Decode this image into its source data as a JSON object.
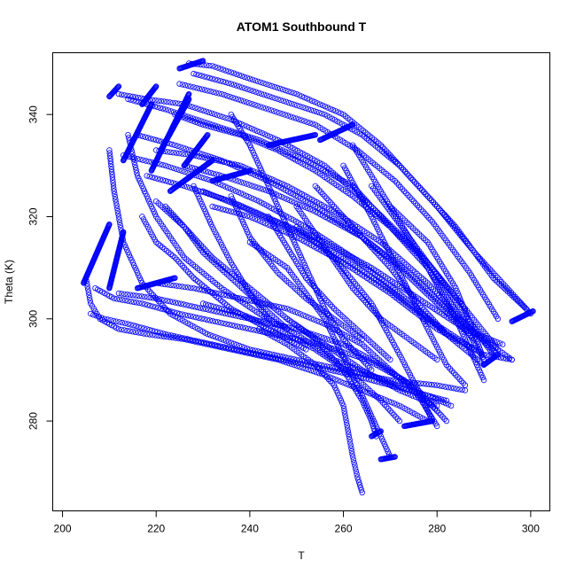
{
  "chart_data": {
    "type": "scatter",
    "title": "ATOM1 Southbound T",
    "xlabel": "T",
    "ylabel": "Theta (K)",
    "xlim": [
      198,
      304
    ],
    "ylim": [
      262.5,
      352
    ],
    "xticks": [
      "200",
      "220",
      "240",
      "260",
      "280",
      "300"
    ],
    "yticks": [
      "280",
      "300",
      "320",
      "340"
    ],
    "xtick_values": [
      200,
      220,
      240,
      260,
      280,
      300
    ],
    "ytick_values": [
      280,
      300,
      320,
      340
    ],
    "marker": "open-circle",
    "color": "#0000ff",
    "grid": false,
    "legend": "none",
    "profiles": [
      {
        "x": [
          227,
          232,
          240,
          250,
          260,
          268,
          276,
          284,
          292,
          299
        ],
        "y": [
          350,
          349.5,
          347,
          344,
          340,
          334,
          326,
          318,
          308,
          302
        ]
      },
      {
        "x": [
          228,
          236,
          246,
          256,
          264,
          272,
          280,
          288,
          295,
          300
        ],
        "y": [
          348,
          346,
          343,
          340,
          336,
          330,
          322,
          313,
          306,
          301
        ]
      },
      {
        "x": [
          225,
          234,
          244,
          254,
          263,
          271,
          279,
          287,
          293
        ],
        "y": [
          346,
          344,
          341,
          338,
          333,
          327,
          319,
          309,
          300
        ]
      },
      {
        "x": [
          212,
          218,
          226,
          236,
          246,
          256,
          266,
          276,
          286,
          293
        ],
        "y": [
          344,
          343,
          342,
          339,
          335,
          330,
          322,
          313,
          302,
          294
        ]
      },
      {
        "x": [
          214,
          222,
          232,
          242,
          252,
          262,
          270,
          278,
          285,
          290
        ],
        "y": [
          343,
          341,
          338,
          335,
          331,
          326,
          318,
          310,
          300,
          292
        ]
      },
      {
        "x": [
          224,
          230,
          238,
          246,
          254,
          262,
          270,
          278,
          286
        ],
        "y": [
          340,
          338,
          336,
          333,
          329,
          324,
          318,
          311,
          302
        ]
      },
      {
        "x": [
          216,
          224,
          234,
          244,
          254,
          264,
          274,
          282,
          290,
          296
        ],
        "y": [
          336,
          334,
          331,
          327,
          322,
          316,
          309,
          302,
          296,
          292
        ]
      },
      {
        "x": [
          220,
          228,
          238,
          248,
          258,
          268,
          278,
          286,
          293
        ],
        "y": [
          333,
          332,
          330,
          326,
          321,
          315,
          307,
          299,
          293
        ]
      },
      {
        "x": [
          213,
          222,
          232,
          242,
          252,
          262,
          272,
          282,
          290
        ],
        "y": [
          332,
          330,
          327,
          323,
          318,
          312,
          305,
          297,
          291
        ]
      },
      {
        "x": [
          226,
          234,
          244,
          254,
          264,
          272,
          280,
          288
        ],
        "y": [
          330,
          328,
          325,
          321,
          316,
          310,
          303,
          296
        ]
      },
      {
        "x": [
          218,
          226,
          236,
          246,
          256,
          266,
          276,
          286,
          294
        ],
        "y": [
          328,
          326,
          323,
          319,
          315,
          310,
          304,
          298,
          295
        ]
      },
      {
        "x": [
          230,
          238,
          248,
          258,
          268,
          278,
          288
        ],
        "y": [
          325,
          322,
          318,
          313,
          307,
          300,
          294
        ]
      },
      {
        "x": [
          232,
          240,
          250,
          260,
          270,
          280,
          290,
          296
        ],
        "y": [
          322,
          320,
          316,
          311,
          305,
          298,
          293,
          292
        ]
      },
      {
        "x": [
          220,
          226,
          232,
          240,
          248,
          256,
          264,
          272,
          280
        ],
        "y": [
          323,
          318,
          312,
          306,
          300,
          295,
          290,
          286,
          283
        ]
      },
      {
        "x": [
          214,
          216,
          220,
          226,
          234,
          242,
          250,
          258,
          266,
          274,
          282
        ],
        "y": [
          336,
          328,
          320,
          312,
          306,
          301,
          297,
          292,
          289,
          286,
          284
        ]
      },
      {
        "x": [
          210,
          211,
          213,
          217,
          223,
          231,
          240,
          250,
          260,
          270,
          280,
          286
        ],
        "y": [
          333,
          325,
          315,
          307,
          301,
          297,
          294,
          292,
          290,
          288,
          287,
          286
        ]
      },
      {
        "x": [
          205,
          206,
          208,
          212,
          218,
          226,
          236,
          246,
          256,
          264,
          272,
          278
        ],
        "y": [
          308,
          303,
          300,
          298,
          297,
          296,
          294,
          292,
          289,
          286,
          283,
          280
        ]
      },
      {
        "x": [
          206,
          209,
          214,
          222,
          232,
          242,
          252,
          262,
          270,
          278,
          283
        ],
        "y": [
          301,
          300,
          299,
          297,
          295,
          293,
          291,
          289,
          287,
          285,
          283
        ]
      },
      {
        "x": [
          207,
          211,
          217,
          225,
          235,
          245,
          255,
          265,
          273,
          280
        ],
        "y": [
          306,
          304,
          303,
          301,
          299,
          297,
          295,
          292,
          288,
          282
        ]
      },
      {
        "x": [
          212,
          220,
          230,
          240,
          250,
          260,
          268,
          276,
          282
        ],
        "y": [
          305,
          304,
          302,
          300,
          298,
          295,
          291,
          286,
          280
        ]
      },
      {
        "x": [
          220,
          228,
          238,
          248,
          256,
          264,
          270,
          276,
          280
        ],
        "y": [
          307,
          306,
          304,
          302,
          299,
          295,
          290,
          285,
          279
        ]
      },
      {
        "x": [
          230,
          238,
          246,
          254,
          262,
          268,
          272
        ],
        "y": [
          303,
          301,
          298,
          294,
          289,
          284,
          280
        ]
      },
      {
        "x": [
          242,
          248,
          254,
          258,
          260,
          261,
          262,
          263,
          264
        ],
        "y": [
          298,
          295,
          291,
          287,
          283,
          278,
          273,
          269,
          266
        ]
      },
      {
        "x": [
          248,
          254,
          260,
          264,
          266,
          267
        ],
        "y": [
          300,
          296,
          290,
          284,
          280,
          277
        ]
      },
      {
        "x": [
          240,
          248,
          256,
          264,
          270
        ],
        "y": [
          315,
          310,
          300,
          285,
          273
        ]
      },
      {
        "x": [
          250,
          258,
          266,
          272,
          276,
          279
        ],
        "y": [
          318,
          312,
          303,
          293,
          286,
          280
        ]
      },
      {
        "x": [
          260,
          266,
          272,
          278,
          282,
          286
        ],
        "y": [
          330,
          320,
          309,
          298,
          291,
          287
        ]
      },
      {
        "x": [
          262,
          270,
          278,
          284,
          288,
          290
        ],
        "y": [
          334,
          322,
          310,
          300,
          292,
          288
        ]
      },
      {
        "x": [
          266,
          274,
          282,
          288,
          292
        ],
        "y": [
          326,
          316,
          306,
          298,
          293
        ]
      },
      {
        "x": [
          270,
          278,
          284,
          288,
          290
        ],
        "y": [
          322,
          315,
          306,
          297,
          292
        ]
      },
      {
        "x": [
          236,
          240,
          244,
          248,
          252,
          256,
          260,
          266
        ],
        "y": [
          340,
          334,
          326,
          318,
          310,
          302,
          296,
          290
        ]
      },
      {
        "x": [
          217,
          220,
          224,
          228,
          232,
          236,
          240,
          244,
          248,
          252
        ],
        "y": [
          320,
          315,
          312,
          308,
          305,
          302,
          300,
          298,
          296,
          294
        ]
      },
      {
        "x": [
          222,
          226,
          230,
          236,
          242,
          248
        ],
        "y": [
          322,
          318,
          313,
          308,
          303,
          298
        ]
      },
      {
        "x": [
          228,
          232,
          236,
          240,
          244
        ],
        "y": [
          326,
          318,
          311,
          305,
          300
        ]
      },
      {
        "x": [
          236,
          240,
          246,
          252,
          258,
          264
        ],
        "y": [
          324,
          316,
          309,
          304,
          300,
          296
        ]
      },
      {
        "x": [
          244,
          248,
          252,
          258,
          264,
          270
        ],
        "y": [
          320,
          314,
          308,
          302,
          297,
          292
        ]
      },
      {
        "x": [
          250,
          256,
          262,
          268,
          274,
          280
        ],
        "y": [
          322,
          314,
          306,
          300,
          296,
          292
        ]
      },
      {
        "x": [
          254,
          262,
          270,
          276,
          282
        ],
        "y": [
          326,
          318,
          310,
          303,
          297
        ]
      }
    ],
    "dense_segments": [
      {
        "x": [
          204.5,
          210
        ],
        "y": [
          307,
          318.5
        ]
      },
      {
        "x": [
          210,
          213
        ],
        "y": [
          306,
          317
        ]
      },
      {
        "x": [
          210,
          212
        ],
        "y": [
          343.5,
          345.5
        ]
      },
      {
        "x": [
          217,
          220
        ],
        "y": [
          342,
          345.5
        ]
      },
      {
        "x": [
          213,
          219
        ],
        "y": [
          331,
          342
        ]
      },
      {
        "x": [
          219,
          227
        ],
        "y": [
          329,
          344
        ]
      },
      {
        "x": [
          226,
          231
        ],
        "y": [
          330,
          336
        ]
      },
      {
        "x": [
          223,
          232
        ],
        "y": [
          325,
          331
        ]
      },
      {
        "x": [
          221,
          227
        ],
        "y": [
          333,
          343
        ]
      },
      {
        "x": [
          225,
          230
        ],
        "y": [
          349,
          350.5
        ]
      },
      {
        "x": [
          216,
          224
        ],
        "y": [
          306,
          308
        ]
      },
      {
        "x": [
          296,
          300.5
        ],
        "y": [
          299.5,
          301.5
        ]
      },
      {
        "x": [
          290,
          293
        ],
        "y": [
          291,
          293
        ]
      },
      {
        "x": [
          273,
          279
        ],
        "y": [
          279,
          280
        ]
      },
      {
        "x": [
          266,
          268
        ],
        "y": [
          277,
          278
        ]
      },
      {
        "x": [
          268,
          271
        ],
        "y": [
          272.5,
          273
        ]
      },
      {
        "x": [
          232,
          240
        ],
        "y": [
          327,
          329
        ]
      },
      {
        "x": [
          244,
          254
        ],
        "y": [
          334,
          336
        ]
      },
      {
        "x": [
          255,
          262
        ],
        "y": [
          335,
          338
        ]
      }
    ]
  }
}
